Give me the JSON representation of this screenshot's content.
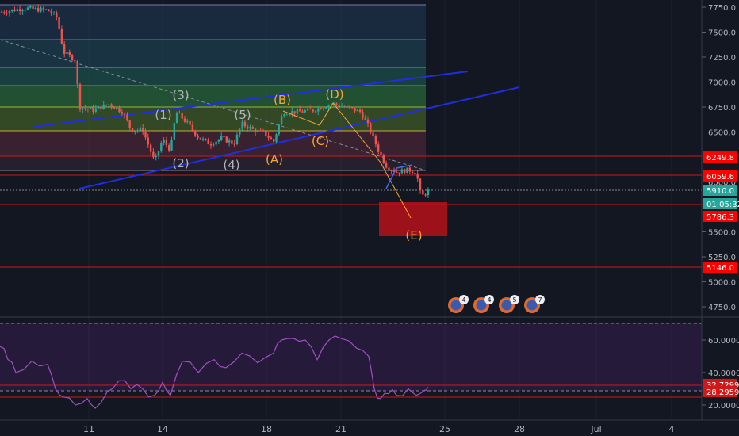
{
  "chart_data": {
    "type": "candlestick",
    "price_axis": {
      "ticks": [
        "7750.0",
        "7500.0",
        "7250.0",
        "7000.0",
        "6750.0",
        "6500.0",
        "6000.0",
        "5500.0",
        "5250.0",
        "5000.0",
        "4750.0"
      ],
      "ylim": [
        4550,
        7800
      ]
    },
    "time_axis": {
      "ticks": [
        "11",
        "14",
        "18",
        "21",
        "25",
        "28",
        "Jul",
        "4"
      ]
    },
    "price_labels": [
      {
        "text": "6249.8",
        "price": 6249.8,
        "color": "#ff0000"
      },
      {
        "text": "6059.6",
        "price": 6059.6,
        "color": "#ff0000"
      },
      {
        "text": "5910.0",
        "price": 5910,
        "color": "#26a69a"
      },
      {
        "text": "01:05:32",
        "price": 5800,
        "color": "#26a69a"
      },
      {
        "text": "5786.3",
        "price": 5786.3,
        "color": "#ff0000"
      },
      {
        "text": "5146.0",
        "price": 5146,
        "color": "#ff0000"
      }
    ],
    "wave_labels": [
      {
        "text": "(1)",
        "color": "#b2b5be"
      },
      {
        "text": "(2)",
        "color": "#b2b5be"
      },
      {
        "text": "(3)",
        "color": "#b2b5be"
      },
      {
        "text": "(4)",
        "color": "#b2b5be"
      },
      {
        "text": "(5)",
        "color": "#b2b5be"
      },
      {
        "text": "(A)",
        "color": "#f7a531"
      },
      {
        "text": "(B)",
        "color": "#f7a531"
      },
      {
        "text": "(C)",
        "color": "#f7a531"
      },
      {
        "text": "(D)",
        "color": "#f7a531"
      },
      {
        "text": "(E)",
        "color": "#f7a531"
      }
    ],
    "event_badges": [
      "4",
      "4",
      "5",
      "7"
    ],
    "rsi": {
      "ticks": [
        "60.0000",
        "40.0000",
        "20.0000"
      ],
      "labels": [
        {
          "text": "32.7299",
          "value": 32.7299
        },
        {
          "text": "28.2959",
          "value": 28.2959
        }
      ],
      "ylim": [
        14,
        72
      ]
    }
  }
}
